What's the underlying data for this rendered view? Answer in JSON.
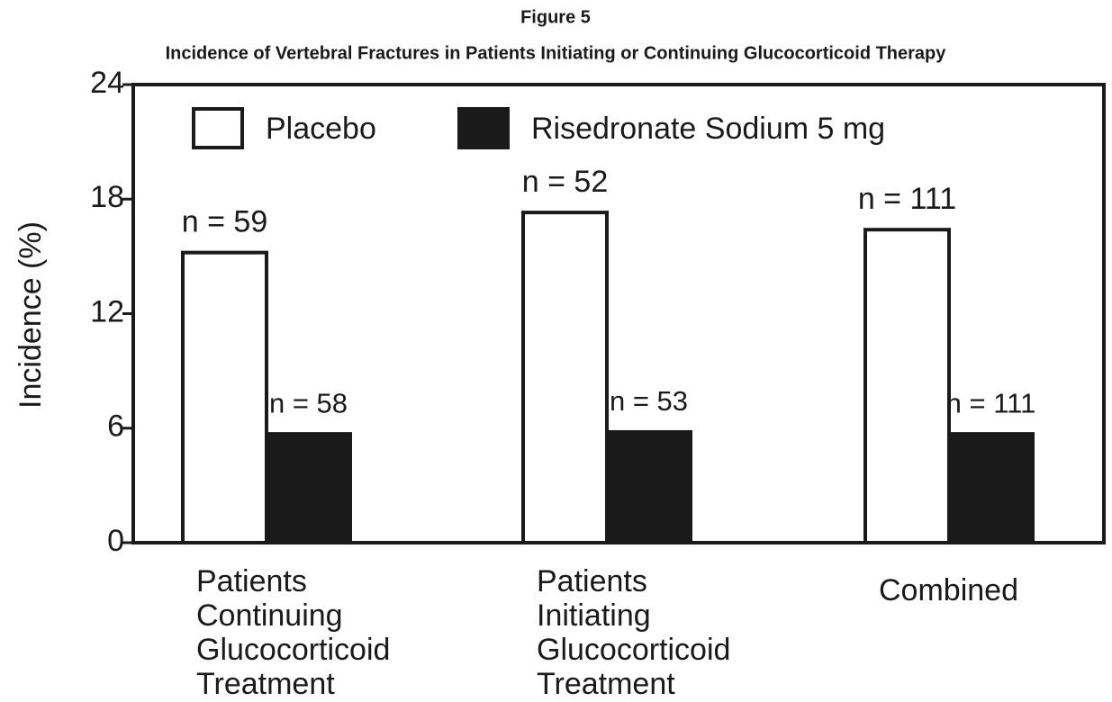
{
  "chart_data": {
    "type": "bar",
    "title": "Figure 5",
    "subtitle": "Incidence of Vertebral Fractures in Patients Initiating or Continuing Glucocorticoid Therapy",
    "y_label": "Incidence (%)",
    "categories": [
      [
        "Patients",
        "Continuing",
        "Glucocorticoid",
        "Treatment"
      ],
      [
        "Patients",
        "Initiating",
        "Glucocorticoid",
        "Treatment"
      ],
      [
        "Combined"
      ]
    ],
    "series": [
      {
        "name": "Placebo",
        "color": "#ffffff",
        "values": [
          15.2,
          17.3,
          16.4
        ],
        "annotations": [
          "n = 59",
          "n = 52",
          "n = 111"
        ]
      },
      {
        "name": "Risedronate Sodium 5 mg",
        "color": "#1a1a1a",
        "values": [
          5.7,
          5.8,
          5.7
        ],
        "annotations": [
          "n = 58",
          "n = 53",
          "n = 111"
        ]
      }
    ],
    "ylim": [
      0,
      24
    ],
    "yticks": [
      0,
      6,
      12,
      18,
      24
    ],
    "grid": false,
    "legend": "top-left"
  }
}
